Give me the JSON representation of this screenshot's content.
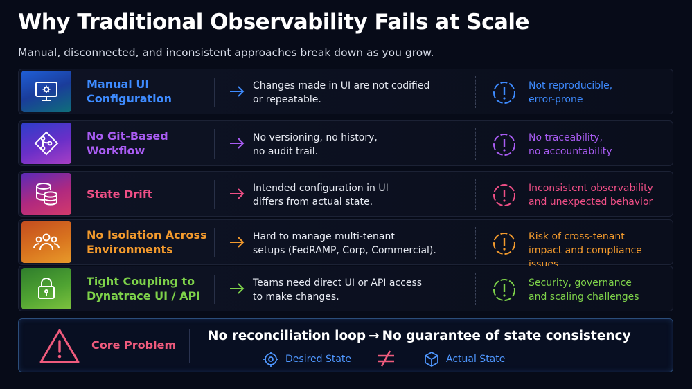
{
  "header": {
    "title": "Why Traditional Observability Fails at Scale",
    "subtitle": "Manual, disconnected, and inconsistent approaches break down as you grow."
  },
  "rows": [
    {
      "name_lines": [
        "Manual UI",
        "Configuration"
      ],
      "icon": "monitor-gear-icon",
      "description_lines": [
        "Changes made in UI are not codified",
        "or repeatable."
      ],
      "impact_lines": [
        "Not reproducible,",
        "error-prone"
      ],
      "color": "#3e8bff"
    },
    {
      "name_lines": [
        "No Git-Based",
        "Workflow"
      ],
      "icon": "git-branch-icon",
      "description_lines": [
        "No versioning, no history,",
        "no audit trail."
      ],
      "impact_lines": [
        "No traceability,",
        "no accountability"
      ],
      "color": "#a95cf3"
    },
    {
      "name_lines": [
        "State Drift"
      ],
      "icon": "database-icon",
      "description_lines": [
        "Intended configuration in UI",
        "differs from actual state."
      ],
      "impact_lines": [
        "Inconsistent observability",
        "and unexpected behavior"
      ],
      "color": "#ef4f86"
    },
    {
      "name_lines": [
        "No Isolation Across",
        "Environments"
      ],
      "icon": "users-group-icon",
      "description_lines": [
        "Hard to manage multi-tenant",
        "setups (FedRAMP, Corp, Commercial)."
      ],
      "impact_lines": [
        "Risk of cross-tenant",
        "impact and compliance issues"
      ],
      "color": "#f39a2d"
    },
    {
      "name_lines": [
        "Tight Coupling to",
        "Dynatrace UI / API"
      ],
      "icon": "lock-icon",
      "description_lines": [
        "Teams need direct UI or API access",
        "to make changes."
      ],
      "impact_lines": [
        "Security, governance",
        "and scaling challenges"
      ],
      "color": "#7ed24a"
    }
  ],
  "core": {
    "label": "Core Problem",
    "statement_left": "No reconciliation loop",
    "arrow": "→",
    "statement_right": "No guarantee of state consistency",
    "desired_state": "Desired State",
    "actual_state": "Actual State",
    "neq_symbol": "≠"
  }
}
